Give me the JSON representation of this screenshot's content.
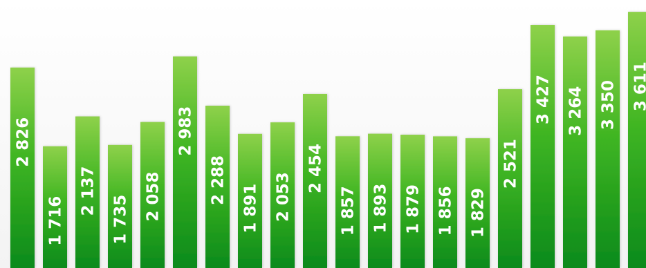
{
  "chart_data": {
    "type": "bar",
    "title": "",
    "xlabel": "",
    "ylabel": "",
    "ylim": [
      0,
      3700
    ],
    "values": [
      2826,
      1716,
      2137,
      1735,
      2058,
      2983,
      2288,
      1891,
      2053,
      2454,
      1857,
      1893,
      1879,
      1856,
      1829,
      2521,
      3427,
      3264,
      3350,
      3611
    ],
    "labels": [
      "2 826",
      "1 716",
      "2 137",
      "1 735",
      "2 058",
      "2 983",
      "2 288",
      "1 891",
      "2 053",
      "2 454",
      "1 857",
      "1 893",
      "1 879",
      "1 856",
      "1 829",
      "2 521",
      "3 427",
      "3 264",
      "3 350",
      "3 611"
    ],
    "grid": false,
    "legend": "none",
    "colors": {
      "bar_top": "#8ed14a",
      "bar_mid": "#3fb522",
      "bar_bottom": "#0b8a1a",
      "label": "#ffffff"
    }
  }
}
